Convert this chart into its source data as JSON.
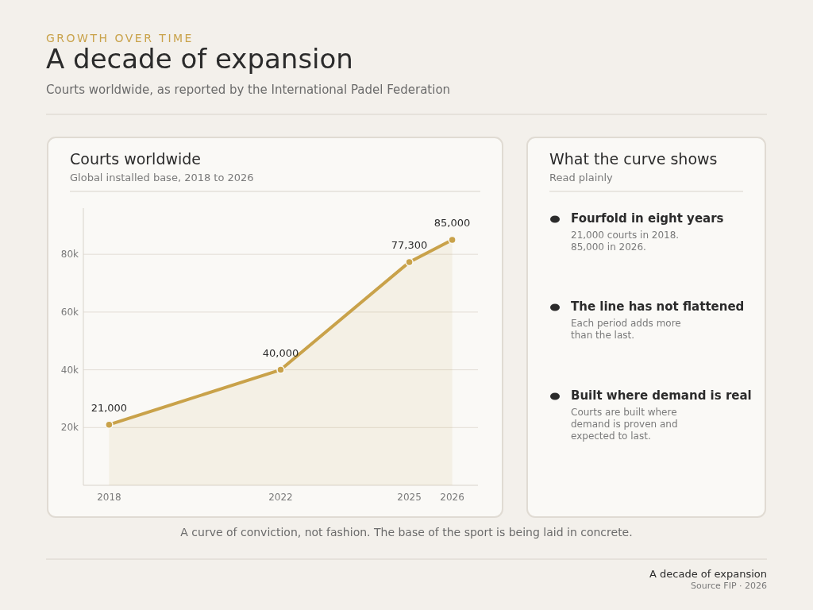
{
  "chart_data": {
    "type": "area",
    "title": "A decade of expansion",
    "subtitle": "Courts worldwide, as reported by the International Padel Federation",
    "x": [
      2018,
      2022,
      2025,
      2026
    ],
    "values": [
      21000,
      40000,
      77300,
      85000
    ],
    "color": "#c9a24a",
    "xlim": [
      2017.4,
      2026.6
    ],
    "xticks": [
      2018,
      2022,
      2025,
      2026
    ],
    "ylim": [
      0,
      96000
    ],
    "yticks": [
      {
        "value": 20000,
        "label": "20k"
      },
      {
        "value": 40000,
        "label": "40k"
      },
      {
        "value": 60000,
        "label": "60k"
      },
      {
        "value": 80000,
        "label": "80k"
      }
    ],
    "grid": "y",
    "marker": "circle",
    "value_labels": [
      "21,000",
      "40,000",
      "77,300",
      "85,000"
    ],
    "annotations": [
      "GROWTH OVER TIME",
      "Courts worldwide",
      "Global installed base, 2018 to 2026",
      "What the curve shows",
      "Read plainly",
      "Fourfold in eight years",
      "21,000 courts in 2018.\n85,000 in 2026.",
      "The line has not flattened",
      "Each period adds more\nthan the last.",
      "Built where demand is real",
      "Courts are built where\ndemand is proven and\nexpected to last.",
      "A curve of conviction, not fashion. The base of the sport is being laid in concrete.",
      "A decade of expansion",
      "Source FIP · 2026"
    ]
  }
}
